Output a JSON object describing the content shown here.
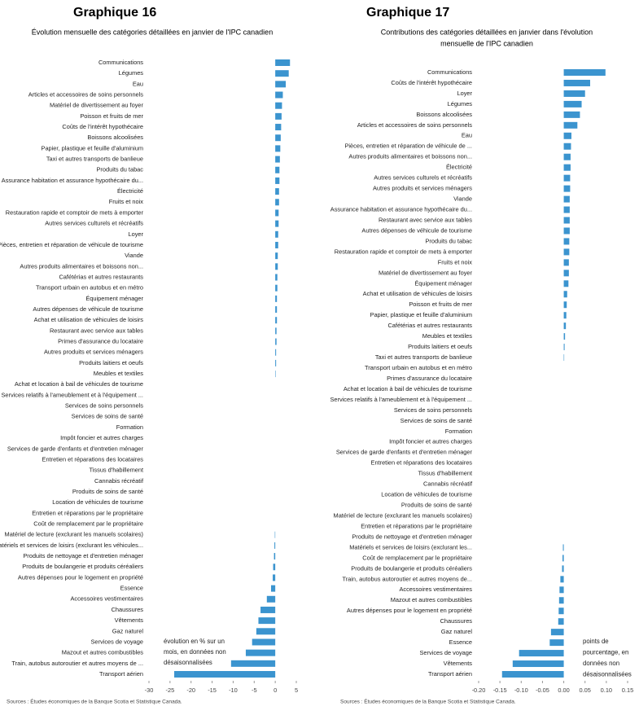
{
  "chart_data": [
    {
      "type": "bar",
      "orientation": "horizontal",
      "title": "Graphique 16",
      "subtitle": [
        "Évolution mensuelle des catégories détaillées en janvier de l'IPC canadien"
      ],
      "annotation": [
        "évolution en % sur un",
        "mois, en données non",
        "désaisonnalisées"
      ],
      "source": "Sources : Études économiques de la Banque Scotia et Statistique Canada.",
      "color": "#3b94cf",
      "categories": [
        "Communications",
        "Légumes",
        "Eau",
        "Articles et accessoires de soins personnels",
        "Matériel de divertissement au foyer",
        "Poisson et fruits de mer",
        "Coûts de l'intérêt hypothécaire",
        "Boissons alcoolisées",
        "Papier, plastique et feuille d'aluminium",
        "Taxi et autres transports de banlieue",
        "Produits du tabac",
        "Assurance habitation et assurance hypothécaire du...",
        "Électricité",
        "Fruits et noix",
        "Restauration rapide et comptoir de mets à emporter",
        "Autres services culturels et récréatifs",
        "Loyer",
        "Pièces, entretien et réparation de véhicule de tourisme",
        "Viande",
        "Autres produits alimentaires et boissons non...",
        "Cafétérias et autres restaurants",
        "Transport urbain en autobus et en métro",
        "Équipement ménager",
        "Autres dépenses de véhicule de tourisme",
        "Achat et utilisation de véhicules de loisirs",
        "Restaurant avec service aux tables",
        "Primes d'assurance du locataire",
        "Autres produits et services ménagers",
        "Produits laitiers et oeufs",
        "Meubles et textiles",
        "Achat et location à bail de véhicules de tourisme",
        "Services relatifs à l'ameublement et à l'équipement ...",
        "Services de soins personnels",
        "Services de soins de santé",
        "Formation",
        "Impôt foncier et autres charges",
        "Services de garde d'enfants et d'entretien ménager",
        "Entretien et réparations des locataires",
        "Tissus d'habillement",
        "Cannabis récréatif",
        "Produits de soins de santé",
        "Location de véhicules de tourisme",
        "Entretien et réparations par le propriétaire",
        "Coût de remplacement par le propriétaire",
        "Matériel de lecture (exclurant les manuels scolaires)",
        "Matériels et services de loisirs (exclurant les véhicules...",
        "Produits de nettoyage et d'entretien ménager",
        "Produits de boulangerie et produits céréaliers",
        "Autres dépenses pour le logement en propriété",
        "Essence",
        "Accessoires vestimentaires",
        "Chaussures",
        "Vêtements",
        "Gaz naturel",
        "Services de voyage",
        "Mazout et autres combustibles",
        "Train, autobus autoroutier et autres moyens de ...",
        "Transport aérien"
      ],
      "values": [
        3.5,
        3.2,
        2.5,
        1.8,
        1.6,
        1.5,
        1.4,
        1.3,
        1.2,
        1.1,
        1.0,
        1.0,
        0.9,
        0.9,
        0.8,
        0.8,
        0.7,
        0.7,
        0.6,
        0.6,
        0.5,
        0.5,
        0.4,
        0.4,
        0.4,
        0.3,
        0.3,
        0.2,
        0.2,
        0.1,
        0,
        0,
        0,
        0,
        0,
        0,
        0,
        0,
        0,
        0,
        0,
        0,
        0,
        0,
        -0.1,
        -0.2,
        -0.3,
        -0.5,
        -0.6,
        -1,
        -2,
        -3.5,
        -4,
        -4.5,
        -5.5,
        -7,
        -10.5,
        -24
      ],
      "xlim": [
        -30,
        5
      ],
      "xticks": [
        -30,
        -25,
        -20,
        -15,
        -10,
        -5,
        0,
        5
      ]
    },
    {
      "type": "bar",
      "orientation": "horizontal",
      "title": "Graphique 17",
      "subtitle": [
        "Contributions des catégories détaillées en janvier dans l'évolution",
        "mensuelle de l'IPC canadien"
      ],
      "annotation": [
        "points de",
        "pourcentage, en",
        "données non",
        "désaisonnalisées"
      ],
      "source": "Sources : Études économiques de la Banque Scotia et Statistique Canada.",
      "color": "#3b94cf",
      "categories": [
        "Communications",
        "Coûts de l'intérêt hypothécaire",
        "Loyer",
        "Légumes",
        "Boissons alcoolisées",
        "Articles et accessoires de soins personnels",
        "Eau",
        "Pièces, entretien et réparation de véhicule de ...",
        "Autres produits alimentaires et boissons non...",
        "Électricité",
        "Autres services culturels et récréatifs",
        "Autres produits et services ménagers",
        "Viande",
        "Assurance habitation et assurance hypothécaire du...",
        "Restaurant avec service aux tables",
        "Autres dépenses de véhicule de tourisme",
        "Produits du tabac",
        "Restauration rapide et comptoir de mets à emporter",
        "Fruits et noix",
        "Matériel de divertissement au foyer",
        "Équipement ménager",
        "Achat et utilisation de véhicules de loisirs",
        "Poisson et fruits de mer",
        "Papier, plastique et feuille d'aluminium",
        "Cafétérias et autres restaurants",
        "Meubles et textiles",
        "Produits laitiers et oeufs",
        "Taxi et autres transports de banlieue",
        "Transport urbain en autobus et en métro",
        "Primes d'assurance du locataire",
        "Achat et location à bail de véhicules de tourisme",
        "Services relatifs à l'ameublement et à l'équipement ...",
        "Services de soins personnels",
        "Services de soins de santé",
        "Formation",
        "Impôt foncier et autres charges",
        "Services de garde d'enfants et d'entretien ménager",
        "Entretien et réparations des locataires",
        "Tissus d'habillement",
        "Cannabis récréatif",
        "Location de véhicules de tourisme",
        "Produits de soins de santé",
        "Matériel de lecture (exclurant les manuels scolaires)",
        "Entretien et réparations par le propriétaire",
        "Produits de nettoyage et d'entretien ménager",
        "Matériels et services de loisirs (exclurant les...",
        "Coût de remplacement par le propriétaire",
        "Produits de boulangerie et produits céréaliers",
        "Train, autobus autoroutier et autres moyens de...",
        "Accessoires vestimentaires",
        "Mazout et autres combustibles",
        "Autres dépenses pour le logement en propriété",
        "Chaussures",
        "Gaz naturel",
        "Essence",
        "Services de voyage",
        "Vêtements",
        "Transport aérien"
      ],
      "values": [
        0.098,
        0.062,
        0.05,
        0.042,
        0.038,
        0.032,
        0.018,
        0.017,
        0.016,
        0.016,
        0.015,
        0.015,
        0.014,
        0.014,
        0.014,
        0.014,
        0.013,
        0.013,
        0.012,
        0.012,
        0.011,
        0.008,
        0.007,
        0.006,
        0.005,
        0.003,
        0.002,
        0.001,
        0,
        0,
        0,
        0,
        0,
        0,
        0,
        0,
        0,
        0,
        0,
        0,
        0,
        0,
        0,
        0,
        0,
        -0.002,
        -0.003,
        -0.004,
        -0.008,
        -0.01,
        -0.011,
        -0.012,
        -0.013,
        -0.03,
        -0.033,
        -0.105,
        -0.12,
        -0.145
      ],
      "xlim": [
        -0.2,
        0.15
      ],
      "xticks": [
        {
          "value": -0.2,
          "label": "-0.20"
        },
        -0.15,
        {
          "value": -0.1,
          "label": "-0.10"
        },
        -0.05,
        {
          "value": 0,
          "label": "0.00"
        },
        0.05,
        {
          "value": 0.1,
          "label": "0.10"
        },
        0.15
      ]
    }
  ]
}
